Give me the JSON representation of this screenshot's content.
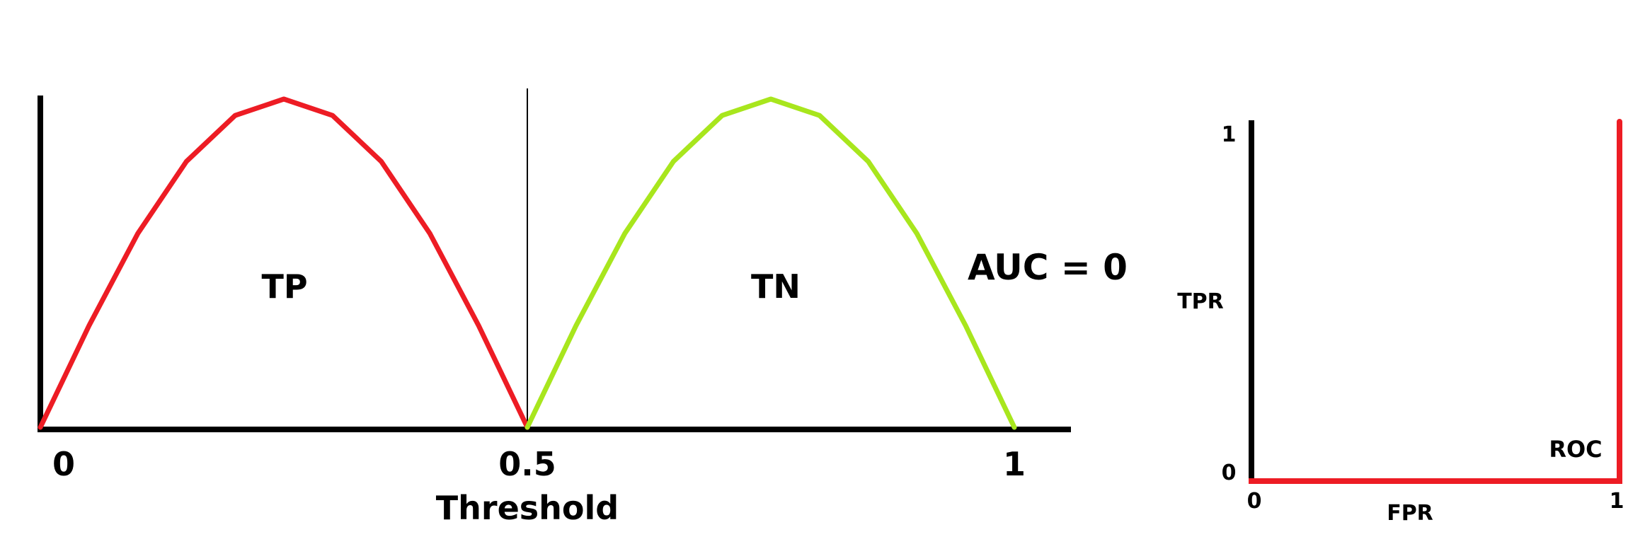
{
  "chart_data": [
    {
      "type": "line",
      "xlabel": "Threshold",
      "xticks": [
        "0",
        "0.5",
        "1"
      ],
      "xlim": [
        0,
        1
      ],
      "series": [
        {
          "name": "TP",
          "color": "#ed1c24",
          "x": [
            0,
            0.05,
            0.1,
            0.15,
            0.2,
            0.25,
            0.3,
            0.35,
            0.4,
            0.45,
            0.5
          ],
          "y": [
            0,
            0.31,
            0.59,
            0.81,
            0.95,
            1.0,
            0.95,
            0.81,
            0.59,
            0.31,
            0
          ]
        },
        {
          "name": "TN",
          "color": "#a8e61d",
          "x": [
            0.5,
            0.55,
            0.6,
            0.65,
            0.7,
            0.75,
            0.8,
            0.85,
            0.9,
            0.95,
            1.0
          ],
          "y": [
            0,
            0.31,
            0.59,
            0.81,
            0.95,
            1.0,
            0.95,
            0.81,
            0.59,
            0.31,
            0
          ]
        }
      ],
      "threshold_line_x": 0.5,
      "annotation": "AUC = 0"
    },
    {
      "type": "line",
      "xlabel": "FPR",
      "ylabel": "TPR",
      "xticks": [
        "0",
        "1"
      ],
      "yticks": [
        "0",
        "1"
      ],
      "xlim": [
        0,
        1
      ],
      "ylim": [
        0,
        1
      ],
      "series": [
        {
          "name": "ROC",
          "color": "#ed1c24",
          "x": [
            0,
            1,
            1
          ],
          "y": [
            0,
            0,
            1
          ]
        }
      ]
    }
  ]
}
